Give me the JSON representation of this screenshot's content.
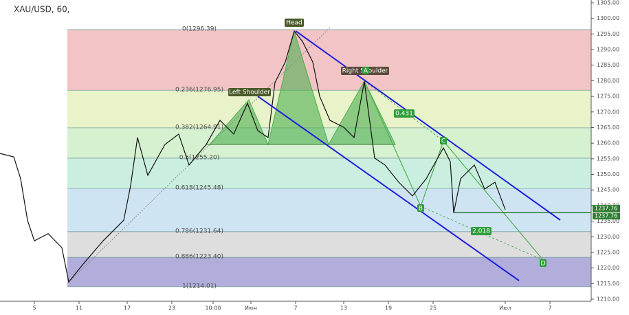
{
  "chart_data": {
    "type": "line",
    "title": "XAU/USD, 60,",
    "x": [
      0,
      4,
      6,
      8,
      10,
      14,
      18,
      20,
      24,
      30,
      36,
      38,
      40,
      43,
      48,
      52,
      55,
      60,
      64,
      68,
      72,
      75,
      78,
      80,
      83,
      85.6,
      88,
      91,
      93,
      96,
      100,
      103,
      106,
      109,
      112,
      116,
      120,
      124,
      129,
      131,
      132,
      134,
      138,
      141,
      144,
      147
    ],
    "series": [
      {
        "name": "XAU/USD",
        "color": "#111111",
        "values": [
          1256.7,
          1255.6,
          1248.6,
          1235.3,
          1228.7,
          1231,
          1226.5,
          1215.5,
          1221,
          1228.7,
          1235.3,
          1246.4,
          1261.8,
          1249.7,
          1259.6,
          1262.9,
          1253,
          1259.6,
          1267.3,
          1262.9,
          1272.8,
          1264,
          1261.8,
          1279.4,
          1286,
          1295.9,
          1292.6,
          1286,
          1275,
          1267.3,
          1265.1,
          1261.8,
          1279.8,
          1255.2,
          1253,
          1247.5,
          1243.1,
          1248.6,
          1258.5,
          1254.1,
          1237.6,
          1248.6,
          1253,
          1245.3,
          1247.5,
          1238.7
        ]
      }
    ],
    "xlim": [
      0,
      172
    ],
    "xticks": [
      {
        "value": 10,
        "label": "5"
      },
      {
        "value": 23,
        "label": "11"
      },
      {
        "value": 37,
        "label": "17"
      },
      {
        "value": 50,
        "label": "23"
      },
      {
        "value": 62,
        "label": "10:00"
      },
      {
        "value": 73,
        "label": "Июн"
      },
      {
        "value": 86,
        "label": "7"
      },
      {
        "value": 100,
        "label": "13"
      },
      {
        "value": 113,
        "label": "19"
      },
      {
        "value": 126,
        "label": "25"
      },
      {
        "value": 147,
        "label": "Июл"
      },
      {
        "value": 160,
        "label": "7"
      }
    ],
    "ylim": [
      1210,
      1305
    ],
    "yticks": [
      {
        "value": 1305,
        "label": "1305.00"
      },
      {
        "value": 1300,
        "label": "1300.00"
      },
      {
        "value": 1295,
        "label": "1295.00"
      },
      {
        "value": 1290,
        "label": "1290.00"
      },
      {
        "value": 1285,
        "label": "1285.00"
      },
      {
        "value": 1280,
        "label": "1280.00"
      },
      {
        "value": 1275,
        "label": "1275.00"
      },
      {
        "value": 1270,
        "label": "1270.00"
      },
      {
        "value": 1265,
        "label": "1265.00"
      },
      {
        "value": 1260,
        "label": "1260.00"
      },
      {
        "value": 1255,
        "label": "1255.00"
      },
      {
        "value": 1250,
        "label": "1250.00"
      },
      {
        "value": 1245,
        "label": "1245.00"
      },
      {
        "value": 1240,
        "label": "1240.00"
      },
      {
        "value": 1235,
        "label": "1235.00"
      },
      {
        "value": 1230,
        "label": "1230.00"
      },
      {
        "value": 1225,
        "label": "1225.00"
      },
      {
        "value": 1220,
        "label": "1220.00"
      },
      {
        "value": 1215,
        "label": "1215.00"
      },
      {
        "value": 1210,
        "label": "1210.00"
      }
    ],
    "fib_levels": [
      {
        "value": 1296.39,
        "label": "0(1296.39)",
        "color": "#f2c4c6"
      },
      {
        "value": 1276.95,
        "label": "0.236(1276.95)",
        "color": "#e8f3c9"
      },
      {
        "value": 1264.91,
        "label": "0.382(1264.91)",
        "color": "#d6f1d0"
      },
      {
        "value": 1255.2,
        "label": "0.5(1255.20)",
        "color": "#caefe0"
      },
      {
        "value": 1245.48,
        "label": "0.618(1245.48)",
        "color": "#cfe4f3"
      },
      {
        "value": 1231.64,
        "label": "0.786(1231.64)",
        "color": "#dedede"
      },
      {
        "value": 1223.4,
        "label": "0.886(1223.40)",
        "color": "#b1aedc"
      },
      {
        "value": 1214.01,
        "label": "1(1214.01)",
        "color": "#ffffff"
      }
    ],
    "last_price": {
      "value": 1237.76,
      "label": "1237.76"
    },
    "annotations": [
      "Head",
      "Left Shoulder",
      "Right Shoulder",
      "A",
      "B",
      "C",
      "D",
      "0.431",
      "2.018"
    ]
  }
}
